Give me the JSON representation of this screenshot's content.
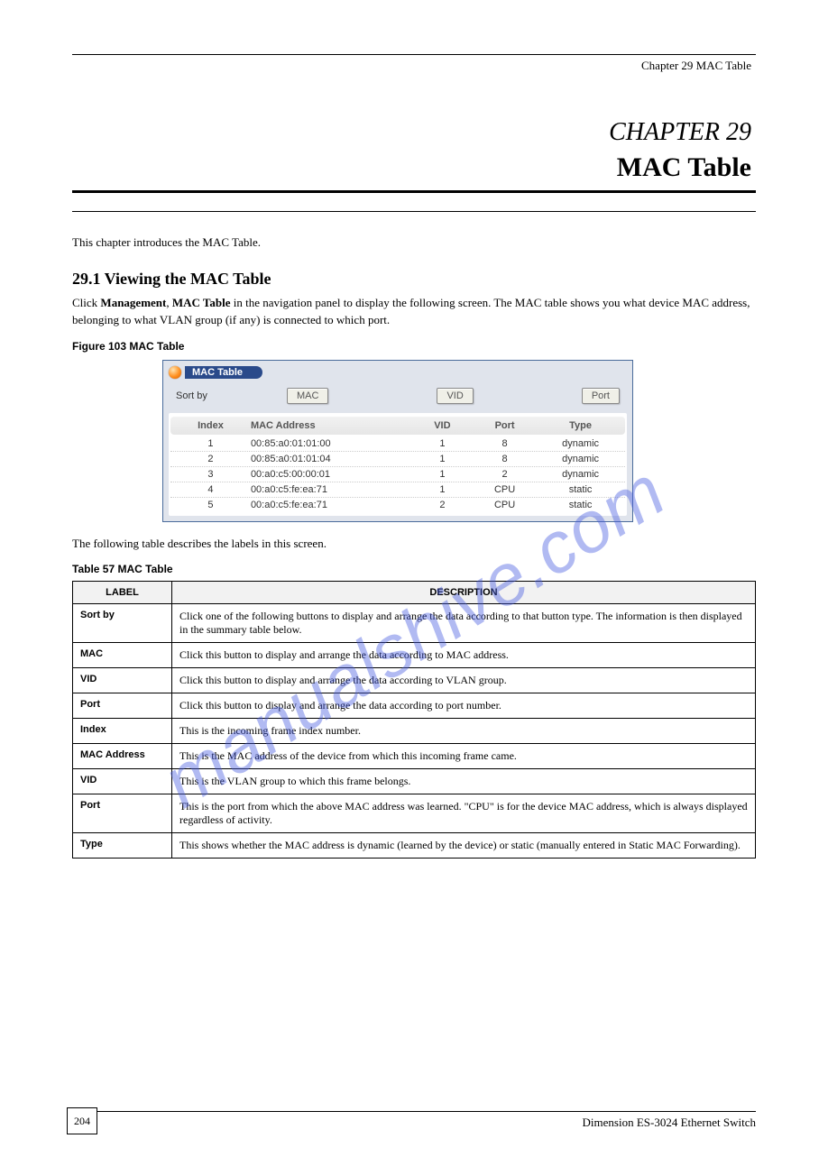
{
  "header": {
    "chapter_ref": "Chapter 29 MAC Table"
  },
  "chapter": {
    "number_label": "CHAPTER 29",
    "title": "MAC Table"
  },
  "intro": "This chapter introduces the MAC Table.",
  "section": {
    "heading": "29.1  Viewing the MAC Table",
    "body_1": "Click ",
    "body_bold_1": "Management",
    "body_2": ", ",
    "body_bold_2": "MAC Table",
    "body_3": " in the navigation panel to display the following screen. The MAC table shows you what device MAC address, belonging to what VLAN group (if any) is connected to which port."
  },
  "figure": {
    "caption": "Figure 103   MAC Table"
  },
  "mac_ui": {
    "panel_title": "MAC Table",
    "sort_label": "Sort by",
    "sort_buttons": {
      "mac": "MAC",
      "vid": "VID",
      "port": "Port"
    },
    "columns": {
      "index": "Index",
      "mac": "MAC Address",
      "vid": "VID",
      "port": "Port",
      "type": "Type"
    },
    "rows": [
      {
        "index": "1",
        "mac": "00:85:a0:01:01:00",
        "vid": "1",
        "port": "8",
        "type": "dynamic"
      },
      {
        "index": "2",
        "mac": "00:85:a0:01:01:04",
        "vid": "1",
        "port": "8",
        "type": "dynamic"
      },
      {
        "index": "3",
        "mac": "00:a0:c5:00:00:01",
        "vid": "1",
        "port": "2",
        "type": "dynamic"
      },
      {
        "index": "4",
        "mac": "00:a0:c5:fe:ea:71",
        "vid": "1",
        "port": "CPU",
        "type": "static"
      },
      {
        "index": "5",
        "mac": "00:a0:c5:fe:ea:71",
        "vid": "2",
        "port": "CPU",
        "type": "static"
      }
    ]
  },
  "table_caption_1": "The following table describes the labels in this screen.",
  "table_caption_2": "Table 57   MAC Table",
  "desc_table": {
    "header": {
      "label": "LABEL",
      "description": "DESCRIPTION"
    },
    "rows": [
      {
        "label": "Sort by",
        "desc_a": "Click one of the following buttons to display and arrange the data according to that button type. The information is then displayed in the summary table below."
      },
      {
        "label": "MAC",
        "desc_a": "Click this button to display and arrange the data according to MAC address."
      },
      {
        "label": "VID",
        "desc_a": "Click this button to display and arrange the data according to VLAN group."
      },
      {
        "label": "Port",
        "desc_a": "Click this button to display and arrange the data according to port number."
      },
      {
        "label": "Index",
        "desc_a": "This is the incoming frame index number."
      },
      {
        "label": "MAC Address",
        "desc_a": "This is the MAC address of the device from which this incoming frame came."
      },
      {
        "label": "VID",
        "desc_a": "This is the VLAN group to which this frame belongs."
      },
      {
        "label": "Port",
        "desc_a": "This is the port from which the above MAC address was learned. \"CPU\" is for the device MAC address, which is always displayed regardless of activity."
      },
      {
        "label": "Type",
        "desc_a": "This shows whether the MAC address is dynamic (learned by the device) or static (manually entered in Static MAC Forwarding)."
      }
    ]
  },
  "footer": {
    "page_number": "204",
    "book_title": "Dimension ES-3024 Ethernet Switch"
  },
  "watermark": "manualshive.com"
}
